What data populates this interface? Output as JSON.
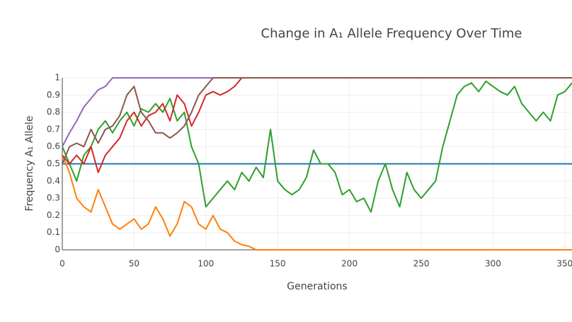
{
  "chart_data": {
    "type": "line",
    "title": "Change in A₁ Allele Frequency Over Time",
    "x_label": "Generations",
    "y_label": "Frequency A₁ Allele",
    "x": [
      0,
      5,
      10,
      15,
      20,
      25,
      30,
      35,
      40,
      45,
      50,
      55,
      60,
      65,
      70,
      75,
      80,
      85,
      90,
      95,
      100,
      105,
      110,
      115,
      120,
      125,
      130,
      135,
      140,
      145,
      150,
      155,
      160,
      165,
      170,
      175,
      180,
      185,
      190,
      195,
      200,
      205,
      210,
      215,
      220,
      225,
      230,
      235,
      240,
      245,
      250,
      255,
      260,
      265,
      270,
      275,
      280,
      285,
      290,
      295,
      300,
      305,
      310,
      315,
      320,
      325,
      330,
      335,
      340,
      345,
      350,
      355
    ],
    "xlim": [
      0,
      355
    ],
    "xticks": [
      0,
      50,
      100,
      150,
      200,
      250,
      300,
      350
    ],
    "ylim": [
      0,
      1
    ],
    "yticks": [
      0,
      0.1,
      0.2,
      0.3,
      0.4,
      0.5,
      0.6,
      0.7,
      0.8,
      0.9,
      1
    ],
    "grid": true,
    "series": [
      {
        "color": "#1f77b4",
        "values": [
          0.5,
          0.5,
          0.5,
          0.5,
          0.5,
          0.5,
          0.5,
          0.5,
          0.5,
          0.5,
          0.5,
          0.5,
          0.5,
          0.5,
          0.5,
          0.5,
          0.5,
          0.5,
          0.5,
          0.5,
          0.5,
          0.5,
          0.5,
          0.5,
          0.5,
          0.5,
          0.5,
          0.5,
          0.5,
          0.5,
          0.5,
          0.5,
          0.5,
          0.5,
          0.5,
          0.5,
          0.5,
          0.5,
          0.5,
          0.5,
          0.5,
          0.5,
          0.5,
          0.5,
          0.5,
          0.5,
          0.5,
          0.5,
          0.5,
          0.5,
          0.5,
          0.5,
          0.5,
          0.5,
          0.5,
          0.5,
          0.5,
          0.5,
          0.5,
          0.5,
          0.5,
          0.5,
          0.5,
          0.5,
          0.5,
          0.5,
          0.5,
          0.5,
          0.5,
          0.5,
          0.5,
          0.5
        ]
      },
      {
        "color": "#ff7f0e",
        "values": [
          0.55,
          0.45,
          0.3,
          0.25,
          0.22,
          0.35,
          0.25,
          0.15,
          0.12,
          0.15,
          0.18,
          0.12,
          0.15,
          0.25,
          0.18,
          0.08,
          0.15,
          0.28,
          0.25,
          0.15,
          0.12,
          0.2,
          0.12,
          0.1,
          0.05,
          0.03,
          0.02,
          0,
          0,
          0,
          0,
          0,
          0,
          0,
          0,
          0,
          0,
          0,
          0,
          0,
          0,
          0,
          0,
          0,
          0,
          0,
          0,
          0,
          0,
          0,
          0,
          0,
          0,
          0,
          0,
          0,
          0,
          0,
          0,
          0,
          0,
          0,
          0,
          0,
          0,
          0,
          0,
          0,
          0,
          0,
          0,
          0
        ]
      },
      {
        "color": "#2ca02c",
        "values": [
          0.6,
          0.5,
          0.4,
          0.55,
          0.6,
          0.7,
          0.75,
          0.68,
          0.75,
          0.8,
          0.72,
          0.82,
          0.8,
          0.85,
          0.8,
          0.88,
          0.75,
          0.8,
          0.6,
          0.5,
          0.25,
          0.3,
          0.35,
          0.4,
          0.35,
          0.45,
          0.4,
          0.48,
          0.42,
          0.7,
          0.4,
          0.35,
          0.32,
          0.35,
          0.42,
          0.58,
          0.5,
          0.5,
          0.45,
          0.32,
          0.35,
          0.28,
          0.3,
          0.22,
          0.4,
          0.5,
          0.35,
          0.25,
          0.45,
          0.35,
          0.3,
          0.35,
          0.4,
          0.6,
          0.75,
          0.9,
          0.95,
          0.97,
          0.92,
          0.98,
          0.95,
          0.92,
          0.9,
          0.95,
          0.85,
          0.8,
          0.75,
          0.8,
          0.75,
          0.9,
          0.92,
          0.97
        ]
      },
      {
        "color": "#d62728",
        "values": [
          0.55,
          0.5,
          0.55,
          0.5,
          0.6,
          0.45,
          0.55,
          0.6,
          0.65,
          0.75,
          0.8,
          0.72,
          0.78,
          0.8,
          0.85,
          0.75,
          0.9,
          0.85,
          0.72,
          0.8,
          0.9,
          0.92,
          0.9,
          0.92,
          0.95,
          1,
          1,
          1,
          1,
          1,
          1,
          1,
          1,
          1,
          1,
          1,
          1,
          1,
          1,
          1,
          1,
          1,
          1,
          1,
          1,
          1,
          1,
          1,
          1,
          1,
          1,
          1,
          1,
          1,
          1,
          1,
          1,
          1,
          1,
          1,
          1,
          1,
          1,
          1,
          1,
          1,
          1,
          1,
          1,
          1,
          1,
          1
        ]
      },
      {
        "color": "#9467bd",
        "values": [
          0.6,
          0.68,
          0.75,
          0.83,
          0.88,
          0.93,
          0.95,
          1,
          1,
          1,
          1,
          1,
          1,
          1,
          1,
          1,
          1,
          1,
          1,
          1,
          1,
          1,
          1,
          1,
          1,
          1,
          1,
          1,
          1,
          1,
          1,
          1,
          1,
          1,
          1,
          1,
          1,
          1,
          1,
          1,
          1,
          1,
          1,
          1,
          1,
          1,
          1,
          1,
          1,
          1,
          1,
          1,
          1,
          1,
          1,
          1,
          1,
          1,
          1,
          1,
          1,
          1,
          1,
          1,
          1,
          1,
          1,
          1,
          1,
          1,
          1,
          1
        ]
      },
      {
        "color": "#8c564b",
        "values": [
          0.5,
          0.6,
          0.62,
          0.6,
          0.7,
          0.62,
          0.7,
          0.72,
          0.78,
          0.9,
          0.95,
          0.8,
          0.75,
          0.68,
          0.68,
          0.65,
          0.68,
          0.72,
          0.8,
          0.9,
          0.95,
          1,
          1,
          1,
          1,
          1,
          1,
          1,
          1,
          1,
          1,
          1,
          1,
          1,
          1,
          1,
          1,
          1,
          1,
          1,
          1,
          1,
          1,
          1,
          1,
          1,
          1,
          1,
          1,
          1,
          1,
          1,
          1,
          1,
          1,
          1,
          1,
          1,
          1,
          1,
          1,
          1,
          1,
          1,
          1,
          1,
          1,
          1,
          1,
          1,
          1,
          1
        ]
      }
    ]
  }
}
